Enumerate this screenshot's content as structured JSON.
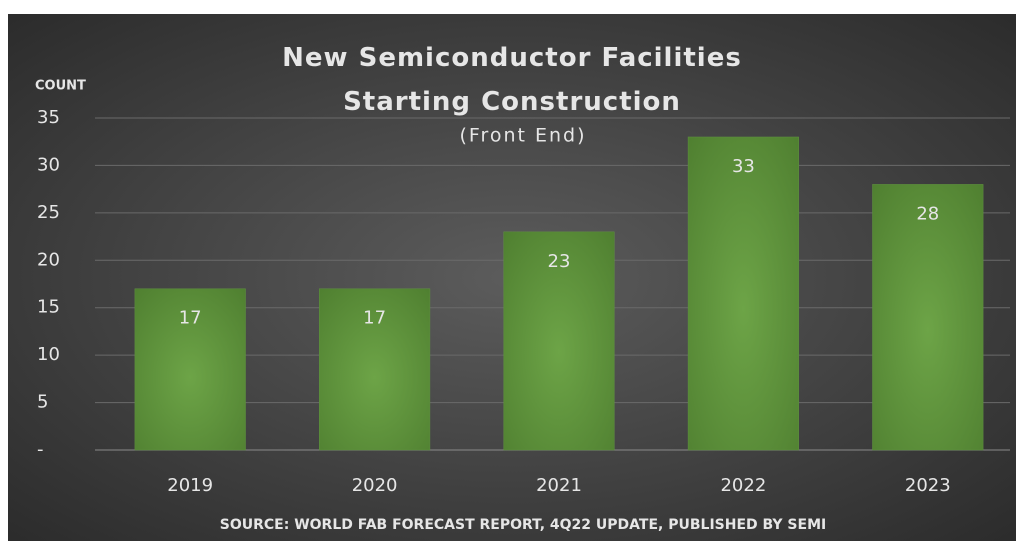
{
  "chart_data": {
    "type": "bar",
    "title": "New Semiconductor Facilities Starting Construction",
    "subtitle": "(Front End)",
    "y_label": "COUNT",
    "source": "SOURCE: WORLD FAB FORECAST REPORT, 4Q22 UPDATE, PUBLISHED BY SEMI",
    "categories": [
      "2019",
      "2020",
      "2021",
      "2022",
      "2023"
    ],
    "values": [
      17,
      17,
      23,
      33,
      28
    ],
    "color": "#5f9140",
    "ylim": [
      0,
      35
    ],
    "yticks": [
      {
        "value": 0,
        "label": "-"
      },
      5,
      10,
      15,
      20,
      25,
      30,
      35
    ],
    "grid": true
  }
}
